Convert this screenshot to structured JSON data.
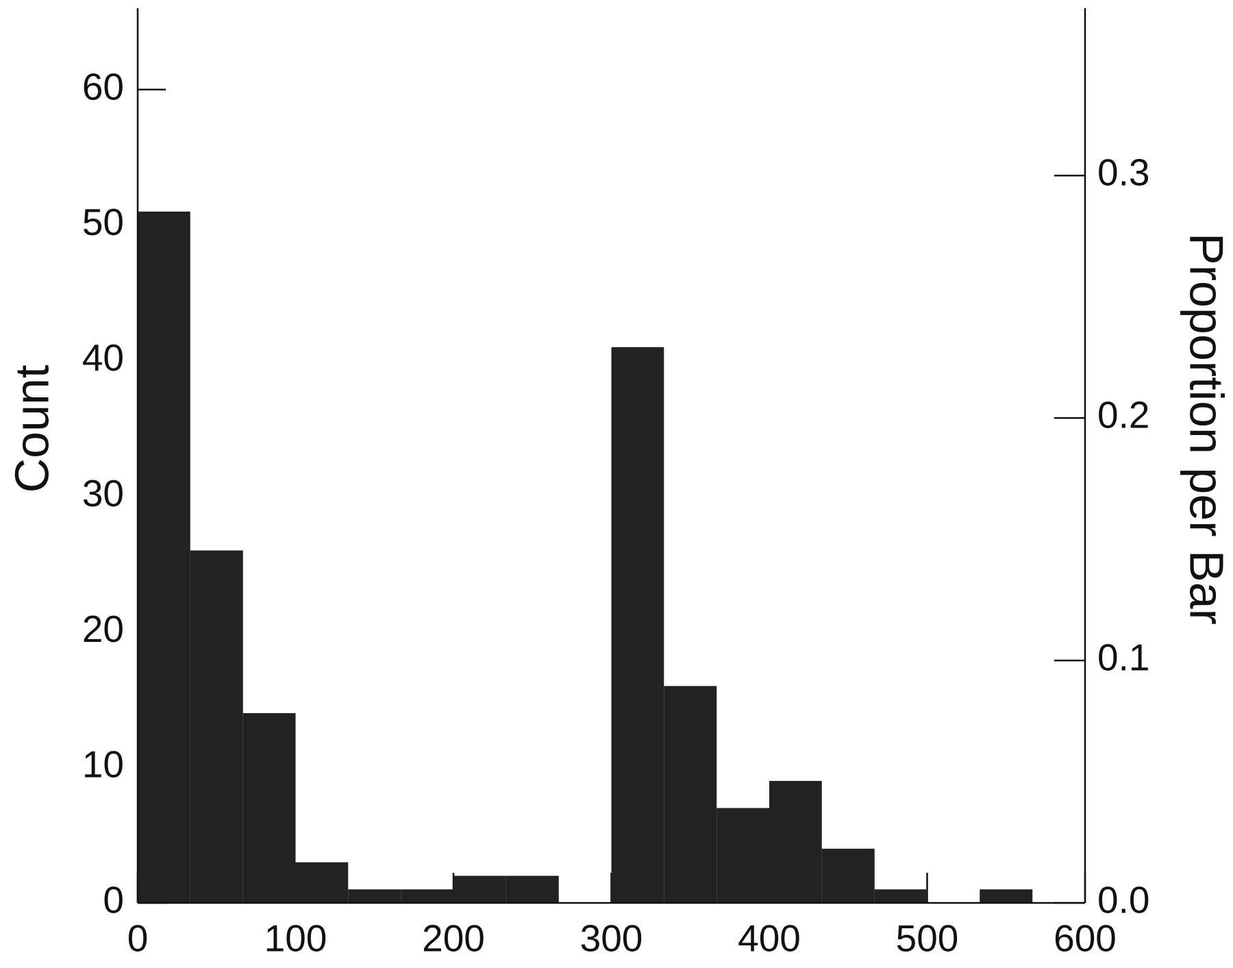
{
  "chart_data": {
    "type": "histogram",
    "y_label": "Count",
    "y2_label": "Proportion per Bar",
    "bins": [
      0,
      33.3,
      66.7,
      100,
      133.3,
      166.7,
      200,
      233.3,
      266.7,
      300,
      333.3,
      366.7,
      400,
      433.3,
      466.7,
      500,
      533.3,
      566.7
    ],
    "values": [
      51,
      26,
      14,
      3,
      1,
      1,
      2,
      2,
      0,
      41,
      16,
      7,
      9,
      4,
      1,
      0,
      1
    ],
    "color": "#222222",
    "xlim": [
      0,
      600
    ],
    "xticks": [
      0,
      100,
      200,
      300,
      400,
      500,
      600
    ],
    "ylim": [
      0,
      66
    ],
    "yticks": [
      0,
      10,
      20,
      30,
      40,
      50,
      60
    ],
    "y2lim": [
      0,
      0.369
    ],
    "y2ticks": [
      {
        "value": 0,
        "label": "0.0"
      },
      0.1,
      0.2,
      0.3
    ],
    "grid": false
  }
}
